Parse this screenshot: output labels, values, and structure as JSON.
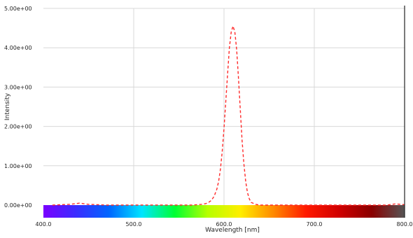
{
  "chart_data": {
    "type": "line",
    "title": "",
    "xlabel": "Wavelength [nm]",
    "ylabel": "Intensity",
    "xlim": [
      400,
      800
    ],
    "ylim": [
      0,
      5
    ],
    "x_ticks": [
      400,
      500,
      600,
      700,
      800
    ],
    "x_tick_labels": [
      "400.0",
      "500.0",
      "600.0",
      "700.0",
      "800.0"
    ],
    "y_ticks": [
      0,
      1,
      2,
      3,
      4,
      5
    ],
    "y_tick_labels": [
      "0.00e+00",
      "1.00e+00",
      "2.00e+00",
      "3.00e+00",
      "4.00e+00",
      "5.00e+00"
    ],
    "grid": true,
    "legend": "none",
    "colorbar": {
      "range": [
        400,
        800
      ],
      "colors": [
        "#7a00ff",
        "#3a2cff",
        "#0066ff",
        "#00e5ff",
        "#00ff33",
        "#b6ff00",
        "#ffee00",
        "#ff8a00",
        "#ff1a00",
        "#d00000",
        "#8a0000",
        "#555555"
      ]
    },
    "series": [
      {
        "name": "",
        "color": "#ff2a2a",
        "style": "dashed",
        "x": [
          410,
          420,
          430,
          440,
          450,
          460,
          470,
          480,
          490,
          500,
          510,
          520,
          530,
          540,
          550,
          560,
          565,
          570,
          575,
          580,
          583,
          586,
          589,
          592,
          594,
          596,
          598,
          600,
          602,
          604,
          606,
          608,
          610,
          612,
          614,
          616,
          618,
          620,
          622,
          624,
          626,
          628,
          630,
          635,
          640,
          650,
          660,
          670,
          680,
          690,
          700,
          710,
          720,
          730,
          740,
          750,
          760,
          770,
          780,
          790,
          800
        ],
        "y": [
          0.0,
          0.01,
          0.02,
          0.05,
          0.02,
          0.01,
          0.0,
          0.0,
          0.0,
          0.0,
          0.0,
          0.0,
          0.0,
          0.0,
          0.0,
          0.0,
          0.0,
          0.01,
          0.02,
          0.04,
          0.07,
          0.12,
          0.22,
          0.4,
          0.6,
          0.9,
          1.35,
          1.95,
          2.65,
          3.35,
          4.0,
          4.4,
          4.55,
          4.4,
          3.95,
          3.25,
          2.45,
          1.65,
          1.05,
          0.6,
          0.32,
          0.16,
          0.07,
          0.02,
          0.0,
          0.0,
          0.0,
          0.0,
          0.0,
          0.0,
          0.0,
          0.0,
          0.0,
          0.0,
          0.0,
          0.0,
          0.0,
          0.0,
          0.0,
          0.03,
          0.01
        ]
      }
    ]
  }
}
